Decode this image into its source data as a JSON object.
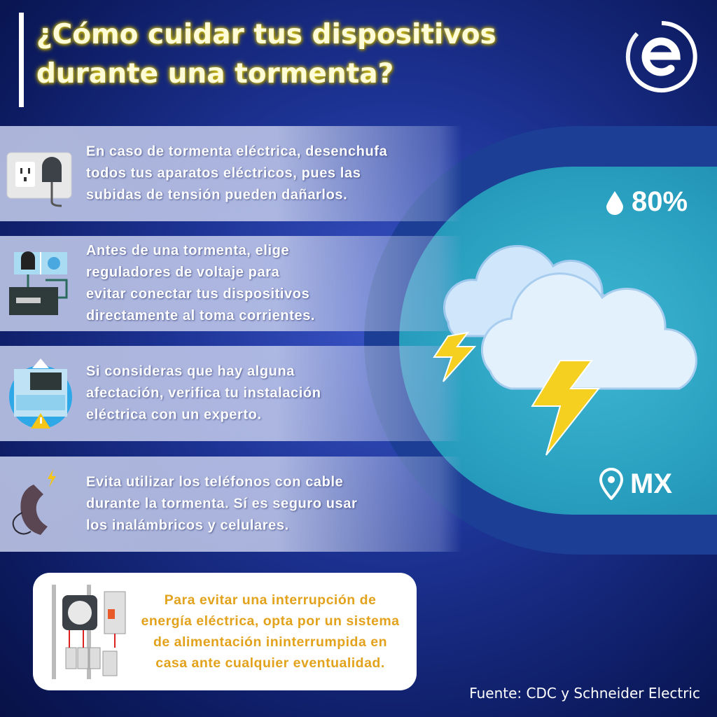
{
  "title": "¿Cómo cuidar tus dispositivos durante una tormenta?",
  "logo": {
    "icon": "e-circle-logo"
  },
  "tips": [
    {
      "icon": "wall-outlet-plug-icon",
      "text": "En caso de tormenta eléctrica, desenchufa\ntodos tus aparatos eléctricos, pues las\nsubidas de tensión pueden dañarlos."
    },
    {
      "icon": "voltage-regulator-icon",
      "text": "Antes de una tormenta, elige\nreguladores de voltaje para\nevitar conectar tus dispositivos\ndirectamente al toma corrientes."
    },
    {
      "icon": "electrical-panel-warning-icon",
      "text": "Si consideras que hay alguna\nafectación, verifica tu instalación\neléctrica con un experto."
    },
    {
      "icon": "corded-phone-icon",
      "text": "Evita utilizar los teléfonos con cable\ndurante la tormenta. Sí es seguro usar\nlos inalámbricos y celulares."
    }
  ],
  "weather": {
    "humidity": "80%",
    "location": "MX",
    "humidity_icon": "droplet-icon",
    "location_icon": "map-pin-icon",
    "illustration": "storm-clouds-lightning"
  },
  "note": {
    "icon": "electric-meter-icon",
    "text": "Para evitar una interrupción de\nenergía eléctrica, opta por un sistema\nde alimentación ininterrumpida en\ncasa ante cualquier eventualidad."
  },
  "source": "Fuente: CDC y Schneider Electric",
  "colors": {
    "title_glow": "#e6d21a",
    "note_text": "#e3a21c",
    "teal": "#2aa0c0",
    "navy": "#0c1a5e"
  }
}
